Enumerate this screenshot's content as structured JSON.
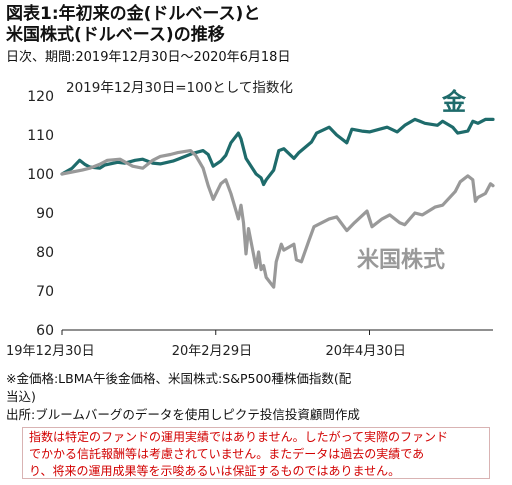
{
  "title_line1": "図表1:年初来の金(ドルベース)と",
  "title_line2": "米国株式(ドルベース)の推移",
  "period": "日次、期間:2019年12月30日〜2020年6月18日",
  "notes": {
    "source_note_1": "※金価格:LBMA午後金価格、米国株式:S&P500種株価指数(配",
    "source_note_2": "当込)",
    "source_note_3": "出所:ブルームバーグのデータを使用しピクテ投信投資顧問作成"
  },
  "disclaimer": {
    "line1": "指数は特定のファンドの運用実績ではありません。したがって実際のファンド",
    "line2": "でかかる信託報酬等は考慮されていません。またデータは過去の実績であ",
    "line3": "り、将来の運用成果等を示唆あるいは保証するものではありません。"
  },
  "chart_data": {
    "type": "line",
    "annotation": "2019年12月30日=100として指数化",
    "x_tick_labels": [
      "19年12月30日",
      "20年2月29日",
      "20年4月30日"
    ],
    "x_tick_dates": [
      "2019-12-30",
      "2020-02-29",
      "2020-04-30"
    ],
    "x_range": [
      "2019-12-30",
      "2020-06-18"
    ],
    "y_ticks": [
      60,
      70,
      80,
      90,
      100,
      110,
      120
    ],
    "ylim": [
      60,
      120
    ],
    "grid": false,
    "series": [
      {
        "name": "金",
        "color": "#1e6b6b",
        "points": [
          [
            "2019-12-30",
            100.0
          ],
          [
            "2020-01-03",
            101.5
          ],
          [
            "2020-01-06",
            103.5
          ],
          [
            "2020-01-08",
            102.5
          ],
          [
            "2020-01-10",
            101.8
          ],
          [
            "2020-01-14",
            101.5
          ],
          [
            "2020-01-16",
            102.3
          ],
          [
            "2020-01-21",
            103.0
          ],
          [
            "2020-01-24",
            102.8
          ],
          [
            "2020-01-28",
            103.5
          ],
          [
            "2020-01-31",
            103.8
          ],
          [
            "2020-02-04",
            102.8
          ],
          [
            "2020-02-07",
            102.6
          ],
          [
            "2020-02-12",
            103.3
          ],
          [
            "2020-02-14",
            103.8
          ],
          [
            "2020-02-18",
            104.8
          ],
          [
            "2020-02-20",
            105.3
          ],
          [
            "2020-02-24",
            106.0
          ],
          [
            "2020-02-26",
            105.0
          ],
          [
            "2020-02-28",
            102.0
          ],
          [
            "2020-03-02",
            103.3
          ],
          [
            "2020-03-04",
            104.8
          ],
          [
            "2020-03-06",
            108.0
          ],
          [
            "2020-03-09",
            110.5
          ],
          [
            "2020-03-10",
            109.0
          ],
          [
            "2020-03-12",
            104.0
          ],
          [
            "2020-03-16",
            100.0
          ],
          [
            "2020-03-18",
            99.0
          ],
          [
            "2020-03-19",
            97.3
          ],
          [
            "2020-03-20",
            98.5
          ],
          [
            "2020-03-23",
            101.0
          ],
          [
            "2020-03-25",
            106.0
          ],
          [
            "2020-03-27",
            106.5
          ],
          [
            "2020-03-31",
            104.0
          ],
          [
            "2020-04-02",
            105.5
          ],
          [
            "2020-04-07",
            108.2
          ],
          [
            "2020-04-09",
            110.5
          ],
          [
            "2020-04-14",
            112.0
          ],
          [
            "2020-04-17",
            110.0
          ],
          [
            "2020-04-21",
            108.0
          ],
          [
            "2020-04-23",
            111.5
          ],
          [
            "2020-04-27",
            111.0
          ],
          [
            "2020-04-30",
            110.8
          ],
          [
            "2020-05-04",
            111.5
          ],
          [
            "2020-05-07",
            112.0
          ],
          [
            "2020-05-11",
            110.8
          ],
          [
            "2020-05-14",
            112.5
          ],
          [
            "2020-05-18",
            114.0
          ],
          [
            "2020-05-20",
            113.5
          ],
          [
            "2020-05-22",
            113.0
          ],
          [
            "2020-05-27",
            112.5
          ],
          [
            "2020-05-29",
            113.5
          ],
          [
            "2020-06-02",
            112.0
          ],
          [
            "2020-06-04",
            110.5
          ],
          [
            "2020-06-08",
            111.0
          ],
          [
            "2020-06-10",
            113.5
          ],
          [
            "2020-06-12",
            113.0
          ],
          [
            "2020-06-15",
            114.0
          ],
          [
            "2020-06-18",
            114.0
          ]
        ]
      },
      {
        "name": "米国株式",
        "color": "#999999",
        "points": [
          [
            "2019-12-30",
            100.0
          ],
          [
            "2020-01-03",
            100.5
          ],
          [
            "2020-01-07",
            101.0
          ],
          [
            "2020-01-10",
            101.5
          ],
          [
            "2020-01-14",
            102.5
          ],
          [
            "2020-01-17",
            103.5
          ],
          [
            "2020-01-22",
            103.8
          ],
          [
            "2020-01-27",
            102.0
          ],
          [
            "2020-01-31",
            101.5
          ],
          [
            "2020-02-04",
            103.5
          ],
          [
            "2020-02-07",
            104.5
          ],
          [
            "2020-02-11",
            105.0
          ],
          [
            "2020-02-14",
            105.5
          ],
          [
            "2020-02-19",
            106.0
          ],
          [
            "2020-02-21",
            104.8
          ],
          [
            "2020-02-24",
            101.5
          ],
          [
            "2020-02-26",
            97.0
          ],
          [
            "2020-02-28",
            93.5
          ],
          [
            "2020-03-02",
            97.5
          ],
          [
            "2020-03-04",
            98.5
          ],
          [
            "2020-03-06",
            95.0
          ],
          [
            "2020-03-09",
            88.5
          ],
          [
            "2020-03-10",
            92.0
          ],
          [
            "2020-03-11",
            87.5
          ],
          [
            "2020-03-12",
            79.5
          ],
          [
            "2020-03-13",
            86.0
          ],
          [
            "2020-03-16",
            76.0
          ],
          [
            "2020-03-17",
            80.0
          ],
          [
            "2020-03-18",
            75.5
          ],
          [
            "2020-03-19",
            76.5
          ],
          [
            "2020-03-20",
            73.5
          ],
          [
            "2020-03-23",
            71.0
          ],
          [
            "2020-03-24",
            77.5
          ],
          [
            "2020-03-26",
            82.0
          ],
          [
            "2020-03-27",
            80.5
          ],
          [
            "2020-03-31",
            82.0
          ],
          [
            "2020-04-01",
            78.0
          ],
          [
            "2020-04-03",
            77.5
          ],
          [
            "2020-04-06",
            83.0
          ],
          [
            "2020-04-08",
            86.5
          ],
          [
            "2020-04-14",
            88.5
          ],
          [
            "2020-04-17",
            89.0
          ],
          [
            "2020-04-21",
            85.5
          ],
          [
            "2020-04-24",
            87.5
          ],
          [
            "2020-04-29",
            90.5
          ],
          [
            "2020-05-01",
            86.5
          ],
          [
            "2020-05-05",
            88.5
          ],
          [
            "2020-05-08",
            89.5
          ],
          [
            "2020-05-12",
            87.5
          ],
          [
            "2020-05-14",
            87.0
          ],
          [
            "2020-05-18",
            90.0
          ],
          [
            "2020-05-21",
            89.5
          ],
          [
            "2020-05-26",
            91.5
          ],
          [
            "2020-05-29",
            92.0
          ],
          [
            "2020-06-03",
            95.5
          ],
          [
            "2020-06-05",
            98.0
          ],
          [
            "2020-06-08",
            99.5
          ],
          [
            "2020-06-10",
            98.5
          ],
          [
            "2020-06-11",
            93.0
          ],
          [
            "2020-06-12",
            94.0
          ],
          [
            "2020-06-15",
            95.0
          ],
          [
            "2020-06-17",
            97.5
          ],
          [
            "2020-06-18",
            97.0
          ]
        ]
      }
    ]
  }
}
